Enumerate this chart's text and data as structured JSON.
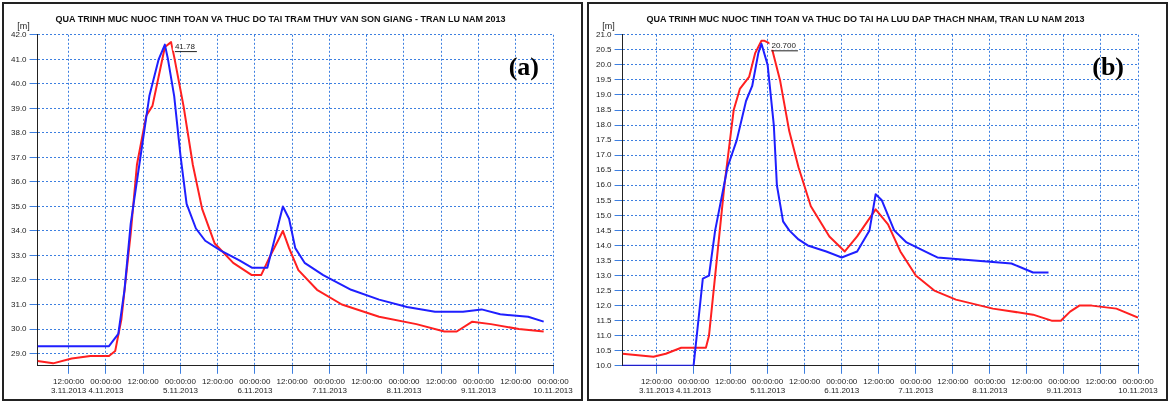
{
  "chart_data": [
    {
      "type": "line",
      "title": "QUA TRINH MUC NUOC TINH TOAN VA THUC DO TAI TRAM THUY VAN SON GIANG - TRAN LU NAM 2013",
      "ylabel": "[m]",
      "annotations": [
        "(a)",
        {
          "text": "41.78",
          "x": "2013-11-04T19:00",
          "y": 41.6
        }
      ],
      "xlim": [
        "2013-11-03T02:00",
        "2013-11-10T00:00"
      ],
      "xticks": [
        {
          "value": "2013-11-03T12:00",
          "label": "12:00:00\n3.11.2013"
        },
        {
          "value": "2013-11-04T00:00",
          "label": "00:00:00\n4.11.2013"
        },
        {
          "value": "2013-11-04T12:00",
          "label": "12:00:00"
        },
        {
          "value": "2013-11-05T00:00",
          "label": "00:00:00\n5.11.2013"
        },
        {
          "value": "2013-11-05T12:00",
          "label": "12:00:00"
        },
        {
          "value": "2013-11-06T00:00",
          "label": "00:00:00\n6.11.2013"
        },
        {
          "value": "2013-11-06T12:00",
          "label": "12:00:00"
        },
        {
          "value": "2013-11-07T00:00",
          "label": "00:00:00\n7.11.2013"
        },
        {
          "value": "2013-11-07T12:00",
          "label": "12:00:00"
        },
        {
          "value": "2013-11-08T00:00",
          "label": "00:00:00\n8.11.2013"
        },
        {
          "value": "2013-11-08T12:00",
          "label": "12:00:00"
        },
        {
          "value": "2013-11-09T00:00",
          "label": "00:00:00\n9.11.2013"
        },
        {
          "value": "2013-11-09T12:00",
          "label": "12:00:00"
        },
        {
          "value": "2013-11-10T00:00",
          "label": "00:00:00\n10.11.2013"
        }
      ],
      "ylim": [
        28.5,
        42
      ],
      "yticks": [
        {
          "value": 29,
          "label": "29.0"
        },
        {
          "value": 30,
          "label": "30.0"
        },
        {
          "value": 31,
          "label": "31.0"
        },
        {
          "value": 32,
          "label": "32.0"
        },
        {
          "value": 33,
          "label": "33.0"
        },
        {
          "value": 34,
          "label": "34.0"
        },
        {
          "value": 35,
          "label": "35.0"
        },
        {
          "value": 36,
          "label": "36.0"
        },
        {
          "value": 37,
          "label": "37.0"
        },
        {
          "value": 38,
          "label": "38.0"
        },
        {
          "value": 39,
          "label": "39.0"
        },
        {
          "value": 40,
          "label": "40.0"
        },
        {
          "value": 41,
          "label": "41.0"
        },
        {
          "value": 42,
          "label": "42.0"
        }
      ],
      "grid": true,
      "legend": false,
      "marker": "none",
      "line_style": "solid",
      "series": [
        {
          "color": "#1f1fff",
          "x": [
            "2013-11-03T02:00",
            "2013-11-04T01:00",
            "2013-11-04T04:00",
            "2013-11-04T06:00",
            "2013-11-04T08:00",
            "2013-11-04T11:00",
            "2013-11-04T14:00",
            "2013-11-04T17:00",
            "2013-11-04T19:00",
            "2013-11-04T20:00",
            "2013-11-04T22:00",
            "2013-11-05T00:00",
            "2013-11-05T02:00",
            "2013-11-05T05:00",
            "2013-11-05T08:00",
            "2013-11-05T13:00",
            "2013-11-05T19:00",
            "2013-11-05T23:00",
            "2013-11-06T04:00",
            "2013-11-06T06:00",
            "2013-11-06T09:00",
            "2013-11-06T11:00",
            "2013-11-06T13:00",
            "2013-11-06T16:00",
            "2013-11-06T22:00",
            "2013-11-07T07:00",
            "2013-11-07T16:00",
            "2013-11-08T01:00",
            "2013-11-08T10:00",
            "2013-11-08T19:00",
            "2013-11-09T01:00",
            "2013-11-09T07:00",
            "2013-11-09T16:00",
            "2013-11-09T21:00"
          ],
          "values": [
            29.3,
            29.3,
            29.8,
            31.6,
            34.3,
            36.9,
            39.5,
            41.0,
            41.6,
            41.0,
            39.5,
            37.1,
            35.1,
            34.1,
            33.6,
            33.2,
            32.8,
            32.5,
            32.5,
            33.5,
            35.0,
            34.5,
            33.3,
            32.7,
            32.2,
            31.6,
            31.2,
            30.9,
            30.7,
            30.7,
            30.8,
            30.6,
            30.5,
            30.3
          ]
        },
        {
          "color": "#ff2020",
          "x": [
            "2013-11-03T02:00",
            "2013-11-03T07:00",
            "2013-11-03T13:00",
            "2013-11-03T19:00",
            "2013-11-04T01:00",
            "2013-11-04T03:00",
            "2013-11-04T05:00",
            "2013-11-04T08:00",
            "2013-11-04T10:00",
            "2013-11-04T13:00",
            "2013-11-04T15:00",
            "2013-11-04T17:00",
            "2013-11-04T19:00",
            "2013-11-04T21:00",
            "2013-11-04T22:00",
            "2013-11-05T01:00",
            "2013-11-05T04:00",
            "2013-11-05T07:00",
            "2013-11-05T11:00",
            "2013-11-05T17:00",
            "2013-11-05T23:00",
            "2013-11-06T02:00",
            "2013-11-06T05:00",
            "2013-11-06T09:00",
            "2013-11-06T11:00",
            "2013-11-06T14:00",
            "2013-11-06T20:00",
            "2013-11-07T04:00",
            "2013-11-07T16:00",
            "2013-11-08T04:00",
            "2013-11-08T13:00",
            "2013-11-08T17:00",
            "2013-11-08T22:00",
            "2013-11-09T04:00",
            "2013-11-09T13:00",
            "2013-11-09T21:00"
          ],
          "values": [
            28.7,
            28.6,
            28.8,
            28.9,
            28.9,
            29.1,
            30.4,
            33.9,
            36.7,
            38.7,
            39.1,
            40.3,
            41.5,
            41.7,
            41.1,
            39.1,
            36.7,
            34.9,
            33.5,
            32.7,
            32.2,
            32.2,
            33.0,
            34.0,
            33.3,
            32.4,
            31.6,
            31.0,
            30.5,
            30.2,
            29.9,
            29.9,
            30.3,
            30.2,
            30.0,
            29.9
          ]
        }
      ]
    },
    {
      "type": "line",
      "title": "QUA TRINH MUC NUOC TINH TOAN VA THUC DO TAI HA LUU DAP THACH NHAM, TRAN LU NAM 2013",
      "ylabel": "[m]",
      "annotations": [
        "(b)",
        {
          "text": "20.700",
          "x": "2013-11-04T22:00",
          "y": 20.7
        }
      ],
      "xlim": [
        "2013-11-03T01:00",
        "2013-11-10T00:00"
      ],
      "xticks": [
        {
          "value": "2013-11-03T12:00",
          "label": "12:00:00\n3.11.2013"
        },
        {
          "value": "2013-11-04T00:00",
          "label": "00:00:00\n4.11.2013"
        },
        {
          "value": "2013-11-04T12:00",
          "label": "12:00:00"
        },
        {
          "value": "2013-11-05T00:00",
          "label": "00:00:00\n5.11.2013"
        },
        {
          "value": "2013-11-05T12:00",
          "label": "12:00:00"
        },
        {
          "value": "2013-11-06T00:00",
          "label": "00:00:00\n6.11.2013"
        },
        {
          "value": "2013-11-06T12:00",
          "label": "12:00:00"
        },
        {
          "value": "2013-11-07T00:00",
          "label": "00:00:00\n7.11.2013"
        },
        {
          "value": "2013-11-07T12:00",
          "label": "12:00:00"
        },
        {
          "value": "2013-11-08T00:00",
          "label": "00:00:00\n8.11.2013"
        },
        {
          "value": "2013-11-08T12:00",
          "label": "12:00:00"
        },
        {
          "value": "2013-11-09T00:00",
          "label": "00:00:00\n9.11.2013"
        },
        {
          "value": "2013-11-09T12:00",
          "label": "12:00:00"
        },
        {
          "value": "2013-11-10T00:00",
          "label": "00:00:00\n10.11.2013"
        }
      ],
      "ylim": [
        10,
        21
      ],
      "yticks": [
        {
          "value": 10,
          "label": "10.0"
        },
        10.5,
        {
          "value": 11,
          "label": "11.0"
        },
        11.5,
        {
          "value": 12,
          "label": "12.0"
        },
        12.5,
        {
          "value": 13,
          "label": "13.0"
        },
        13.5,
        {
          "value": 14,
          "label": "14.0"
        },
        14.5,
        {
          "value": 15,
          "label": "15.0"
        },
        15.5,
        {
          "value": 16,
          "label": "16.0"
        },
        16.5,
        {
          "value": 17,
          "label": "17.0"
        },
        17.5,
        {
          "value": 18,
          "label": "18.0"
        },
        18.5,
        {
          "value": 19,
          "label": "19.0"
        },
        19.5,
        {
          "value": 20,
          "label": "20.0"
        },
        20.5,
        {
          "value": 21,
          "label": "21.0"
        }
      ],
      "grid": true,
      "legend": false,
      "marker": "none",
      "line_style": "solid",
      "series": [
        {
          "color": "#1f1fff",
          "x": [
            "2013-11-03T01:00",
            "2013-11-04T00:00",
            "2013-11-04T03:00",
            "2013-11-04T05:00",
            "2013-11-04T07:00",
            "2013-11-04T11:00",
            "2013-11-04T14:00",
            "2013-11-04T17:00",
            "2013-11-04T19:00",
            "2013-11-04T21:00",
            "2013-11-04T22:00",
            "2013-11-05T00:00",
            "2013-11-05T02:00",
            "2013-11-05T03:00",
            "2013-11-05T05:00",
            "2013-11-05T07:00",
            "2013-11-05T10:00",
            "2013-11-05T13:00",
            "2013-11-05T19:00",
            "2013-11-06T00:00",
            "2013-11-06T05:00",
            "2013-11-06T09:00",
            "2013-11-06T11:00",
            "2013-11-06T13:00",
            "2013-11-06T15:00",
            "2013-11-06T17:00",
            "2013-11-06T21:00",
            "2013-11-07T01:00",
            "2013-11-07T07:00",
            "2013-11-07T19:00",
            "2013-11-08T07:00",
            "2013-11-08T14:00",
            "2013-11-08T19:00"
          ],
          "values": [
            10.0,
            10.0,
            12.9,
            13.0,
            14.5,
            16.6,
            17.5,
            18.8,
            19.3,
            20.4,
            20.7,
            20.0,
            18.0,
            16.0,
            14.8,
            14.5,
            14.2,
            14.0,
            13.8,
            13.6,
            13.8,
            14.5,
            15.7,
            15.5,
            15.0,
            14.5,
            14.1,
            13.9,
            13.6,
            13.5,
            13.4,
            13.1,
            13.1
          ]
        },
        {
          "color": "#ff2020",
          "x": [
            "2013-11-03T01:00",
            "2013-11-03T06:00",
            "2013-11-03T11:00",
            "2013-11-03T15:00",
            "2013-11-03T20:00",
            "2013-11-04T04:00",
            "2013-11-04T05:00",
            "2013-11-04T07:00",
            "2013-11-04T10:00",
            "2013-11-04T13:00",
            "2013-11-04T15:00",
            "2013-11-04T18:00",
            "2013-11-04T20:00",
            "2013-11-04T22:00",
            "2013-11-04T23:00",
            "2013-11-05T01:00",
            "2013-11-05T04:00",
            "2013-11-05T07:00",
            "2013-11-05T10:00",
            "2013-11-05T14:00",
            "2013-11-05T20:00",
            "2013-11-06T01:00",
            "2013-11-06T05:00",
            "2013-11-06T11:00",
            "2013-11-06T15:00",
            "2013-11-06T19:00",
            "2013-11-07T00:00",
            "2013-11-07T06:00",
            "2013-11-07T13:00",
            "2013-11-08T01:00",
            "2013-11-08T14:00",
            "2013-11-08T20:00",
            "2013-11-08T23:00",
            "2013-11-09T02:00",
            "2013-11-09T05:00",
            "2013-11-09T09:00",
            "2013-11-09T17:00",
            "2013-11-10T00:00"
          ],
          "values": [
            10.4,
            10.35,
            10.3,
            10.4,
            10.6,
            10.6,
            11.0,
            13.0,
            16.0,
            18.5,
            19.2,
            19.6,
            20.4,
            20.8,
            20.8,
            20.7,
            19.5,
            17.8,
            16.6,
            15.3,
            14.3,
            13.8,
            14.3,
            15.2,
            14.7,
            13.8,
            13.0,
            12.5,
            12.2,
            11.9,
            11.7,
            11.5,
            11.5,
            11.8,
            12.0,
            12.0,
            11.9,
            11.6
          ]
        }
      ]
    }
  ]
}
